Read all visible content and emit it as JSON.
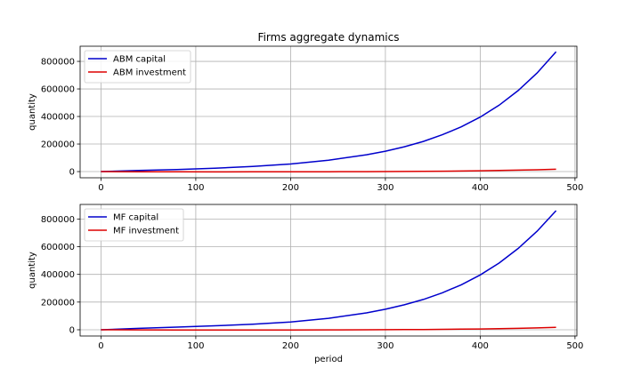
{
  "chart_data": [
    {
      "type": "line",
      "title": "Firms aggregate dynamics",
      "xlabel": "",
      "ylabel": "quantity",
      "xlim": [
        -22,
        502
      ],
      "ylim": [
        -45000,
        910000
      ],
      "xticks": [
        0,
        100,
        200,
        300,
        400,
        500
      ],
      "yticks": [
        0,
        200000,
        400000,
        600000,
        800000
      ],
      "grid": true,
      "legend_position": "upper-left",
      "series": [
        {
          "name": "ABM capital",
          "color": "#0000cc",
          "x": [
            0,
            40,
            80,
            120,
            160,
            200,
            240,
            280,
            300,
            320,
            340,
            360,
            380,
            400,
            420,
            440,
            460,
            480
          ],
          "y": [
            0,
            8000,
            15000,
            25000,
            37000,
            55000,
            82000,
            122000,
            148000,
            180000,
            219000,
            267000,
            325000,
            396000,
            482000,
            588000,
            716000,
            870000
          ]
        },
        {
          "name": "ABM investment",
          "color": "#dd0000",
          "x": [
            0,
            40,
            80,
            120,
            160,
            200,
            240,
            280,
            300,
            320,
            340,
            360,
            380,
            400,
            420,
            440,
            460,
            480
          ],
          "y": [
            0,
            -1500,
            -2000,
            -2200,
            -2000,
            -1600,
            -1000,
            -200,
            300,
            900,
            1700,
            2800,
            4100,
            5700,
            7700,
            10200,
            13300,
            17000
          ]
        }
      ]
    },
    {
      "type": "line",
      "title": "",
      "xlabel": "period",
      "ylabel": "quantity",
      "xlim": [
        -22,
        502
      ],
      "ylim": [
        -45000,
        905000
      ],
      "xticks": [
        0,
        100,
        200,
        300,
        400,
        500
      ],
      "yticks": [
        0,
        200000,
        400000,
        600000,
        800000
      ],
      "grid": true,
      "legend_position": "upper-left",
      "series": [
        {
          "name": "MF capital",
          "color": "#0000cc",
          "x": [
            0,
            40,
            80,
            120,
            160,
            200,
            240,
            280,
            300,
            320,
            340,
            360,
            380,
            400,
            420,
            440,
            460,
            480
          ],
          "y": [
            0,
            10000,
            19000,
            29000,
            40000,
            56000,
            83000,
            122000,
            148000,
            180000,
            219000,
            267000,
            325000,
            396000,
            482000,
            587000,
            712000,
            860000
          ]
        },
        {
          "name": "MF investment",
          "color": "#dd0000",
          "x": [
            0,
            40,
            80,
            120,
            160,
            200,
            240,
            280,
            300,
            320,
            340,
            360,
            380,
            400,
            420,
            440,
            460,
            480
          ],
          "y": [
            0,
            -1000,
            -1500,
            -1800,
            -1700,
            -1400,
            -900,
            -100,
            400,
            1000,
            1800,
            2900,
            4200,
            5800,
            7800,
            10300,
            13400,
            17000
          ]
        }
      ]
    }
  ]
}
